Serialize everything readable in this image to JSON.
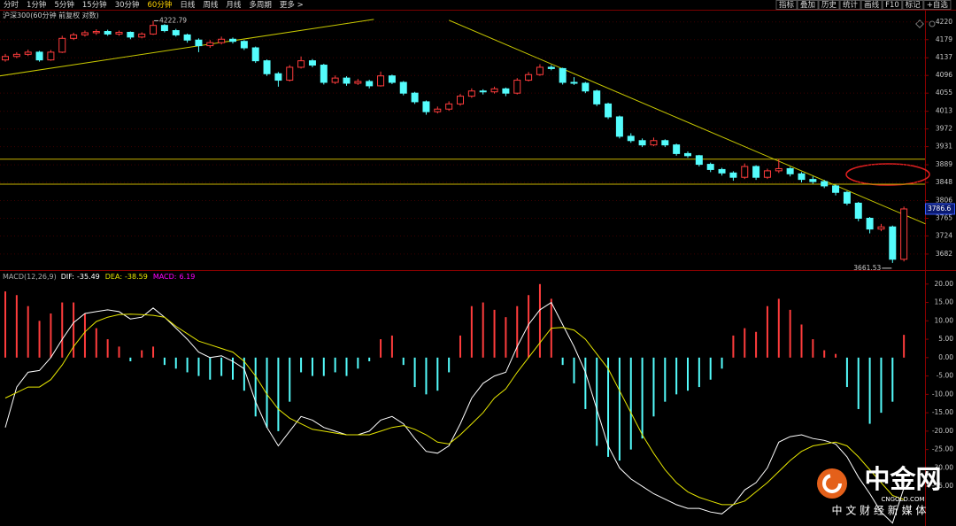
{
  "toolbar": {
    "periods": [
      "分时",
      "1分钟",
      "5分钟",
      "15分钟",
      "30分钟",
      "60分钟",
      "日线",
      "周线",
      "月线",
      "多周期",
      "更多 >"
    ],
    "active_period": 5,
    "tools": [
      "指标",
      "叠加",
      "历史",
      "统计",
      "画线",
      "F10",
      "标记",
      "+自选"
    ]
  },
  "chart_data": [
    {
      "type": "candlestick",
      "title": "沪深300(60分钟 前复权 对数)",
      "candles": [
        [
          4132,
          4146,
          4128,
          4140
        ],
        [
          4140,
          4150,
          4136,
          4145
        ],
        [
          4145,
          4156,
          4141,
          4150
        ],
        [
          4150,
          4153,
          4128,
          4132
        ],
        [
          4132,
          4155,
          4130,
          4150
        ],
        [
          4150,
          4188,
          4148,
          4182
        ],
        [
          4182,
          4195,
          4178,
          4190
        ],
        [
          4190,
          4200,
          4186,
          4195
        ],
        [
          4195,
          4203,
          4190,
          4198
        ],
        [
          4198,
          4202,
          4188,
          4192
        ],
        [
          4192,
          4200,
          4188,
          4196
        ],
        [
          4196,
          4198,
          4180,
          4185
        ],
        [
          4185,
          4196,
          4182,
          4192
        ],
        [
          4192,
          4222.79,
          4190,
          4212
        ],
        [
          4212,
          4215,
          4196,
          4200
        ],
        [
          4200,
          4204,
          4186,
          4190
        ],
        [
          4190,
          4193,
          4172,
          4178
        ],
        [
          4178,
          4182,
          4150,
          4165
        ],
        [
          4165,
          4178,
          4160,
          4172
        ],
        [
          4172,
          4186,
          4168,
          4180
        ],
        [
          4180,
          4184,
          4170,
          4175
        ],
        [
          4175,
          4178,
          4155,
          4160
        ],
        [
          4160,
          4163,
          4125,
          4130
        ],
        [
          4130,
          4133,
          4095,
          4100
        ],
        [
          4100,
          4104,
          4070,
          4085
        ],
        [
          4085,
          4120,
          4082,
          4115
        ],
        [
          4115,
          4140,
          4112,
          4130
        ],
        [
          4130,
          4134,
          4115,
          4120
        ],
        [
          4120,
          4123,
          4075,
          4080
        ],
        [
          4080,
          4096,
          4076,
          4090
        ],
        [
          4090,
          4094,
          4072,
          4078
        ],
        [
          4078,
          4088,
          4074,
          4082
        ],
        [
          4082,
          4086,
          4066,
          4072
        ],
        [
          4072,
          4105,
          4070,
          4095
        ],
        [
          4095,
          4098,
          4076,
          4080
        ],
        [
          4080,
          4083,
          4050,
          4055
        ],
        [
          4055,
          4058,
          4030,
          4035
        ],
        [
          4035,
          4038,
          4005,
          4012
        ],
        [
          4012,
          4024,
          4008,
          4018
        ],
        [
          4018,
          4036,
          4014,
          4030
        ],
        [
          4030,
          4053,
          4026,
          4048
        ],
        [
          4048,
          4066,
          4044,
          4060
        ],
        [
          4060,
          4064,
          4052,
          4058
        ],
        [
          4058,
          4070,
          4054,
          4065
        ],
        [
          4065,
          4068,
          4048,
          4055
        ],
        [
          4055,
          4090,
          4052,
          4085
        ],
        [
          4085,
          4104,
          4082,
          4098
        ],
        [
          4098,
          4122,
          4095,
          4115
        ],
        [
          4115,
          4120,
          4108,
          4112
        ],
        [
          4112,
          4114,
          4075,
          4080
        ],
        [
          4080,
          4092,
          4074,
          4078
        ],
        [
          4078,
          4081,
          4055,
          4060
        ],
        [
          4060,
          4063,
          4025,
          4030
        ],
        [
          4030,
          4033,
          3995,
          4000
        ],
        [
          4000,
          4003,
          3950,
          3955
        ],
        [
          3955,
          3962,
          3940,
          3945
        ],
        [
          3945,
          3950,
          3930,
          3935
        ],
        [
          3935,
          3952,
          3932,
          3945
        ],
        [
          3945,
          3948,
          3930,
          3935
        ],
        [
          3935,
          3938,
          3910,
          3915
        ],
        [
          3915,
          3920,
          3905,
          3910
        ],
        [
          3910,
          3912,
          3885,
          3890
        ],
        [
          3890,
          3894,
          3872,
          3878
        ],
        [
          3878,
          3882,
          3864,
          3870
        ],
        [
          3870,
          3874,
          3852,
          3860
        ],
        [
          3860,
          3892,
          3856,
          3885
        ],
        [
          3885,
          3888,
          3854,
          3860
        ],
        [
          3860,
          3880,
          3856,
          3875
        ],
        [
          3875,
          3902,
          3870,
          3880
        ],
        [
          3880,
          3884,
          3862,
          3868
        ],
        [
          3868,
          3872,
          3848,
          3855
        ],
        [
          3855,
          3862,
          3845,
          3850
        ],
        [
          3850,
          3854,
          3835,
          3840
        ],
        [
          3840,
          3843,
          3818,
          3825
        ],
        [
          3825,
          3828,
          3795,
          3800
        ],
        [
          3800,
          3803,
          3758,
          3765
        ],
        [
          3765,
          3768,
          3730,
          3740
        ],
        [
          3740,
          3752,
          3735,
          3745
        ],
        [
          3745,
          3748,
          3661.53,
          3670
        ],
        [
          3670,
          3792,
          3665,
          3786.6
        ]
      ],
      "up_color": "#ff3c3c",
      "down_color": "#54fcfc",
      "high_label_index": 13,
      "low_label_index": 78,
      "hlines": [
        3902,
        3844
      ],
      "hline_color": "#c8b400",
      "trendlines": [
        [
          [
            -0.47,
            4095
          ],
          [
            32.4,
            4226
          ]
        ],
        [
          [
            39.0,
            4224
          ],
          [
            80.9,
            3752
          ]
        ]
      ],
      "trendline_color": "#c8c800",
      "ylim": [
        3649,
        4236
      ],
      "yticks": [
        4220,
        4179,
        4137,
        4096,
        4055,
        4013,
        3972,
        3931,
        3889,
        3848,
        3806,
        3765,
        3724,
        3682
      ],
      "grid": true
    },
    {
      "type": "macd",
      "title": "MACD(12,26,9)",
      "series": [
        {
          "name": "DIF:",
          "color": "#ffffff",
          "values": [
            -19,
            -8,
            -4,
            -3.5,
            0,
            5,
            9.5,
            12,
            12.5,
            13,
            12.5,
            10.5,
            11,
            13.5,
            11,
            8,
            5,
            1.5,
            0,
            0.5,
            -1,
            -3,
            -12,
            -19,
            -24,
            -20,
            -16,
            -17,
            -19,
            -20,
            -21,
            -21,
            -20,
            -17,
            -16,
            -18,
            -22,
            -25.5,
            -26,
            -24,
            -18,
            -11,
            -7,
            -5,
            -4,
            3,
            9,
            13,
            15,
            9,
            3,
            -4,
            -14,
            -24,
            -30,
            -33,
            -35,
            -37,
            -38.5,
            -40,
            -41,
            -41,
            -42,
            -42.5,
            -40,
            -36,
            -34,
            -30,
            -23,
            -21.5,
            -21,
            -22,
            -22.5,
            -23.5,
            -27,
            -32.5,
            -37,
            -42,
            -45,
            -35.49
          ]
        },
        {
          "name": "DEA:",
          "color": "#e6e600",
          "values": [
            -11,
            -9.5,
            -8,
            -8,
            -6,
            -2,
            3,
            7,
            9.8,
            11,
            11.7,
            11.8,
            11.7,
            11.5,
            11,
            8.5,
            6.5,
            4.5,
            3.5,
            2.5,
            1.5,
            -1,
            -5,
            -10,
            -14,
            -16.5,
            -18,
            -19.5,
            -20,
            -20.5,
            -21,
            -21,
            -21,
            -20,
            -19,
            -18.5,
            -19.5,
            -21,
            -23,
            -23.5,
            -21,
            -18,
            -15,
            -11,
            -8.5,
            -4,
            0,
            4,
            8,
            8.2,
            7.5,
            5,
            1,
            -3,
            -9,
            -15,
            -21,
            -26,
            -30.5,
            -34,
            -36.5,
            -38,
            -39,
            -40,
            -40,
            -39,
            -36.5,
            -34,
            -31,
            -28,
            -25.5,
            -24,
            -23.5,
            -23,
            -24,
            -27,
            -30.5,
            -34,
            -37.5,
            -38.59
          ]
        },
        {
          "name": "MACD:",
          "color": "#ff00ff",
          "style": "bar",
          "up_color": "#ff3c3c",
          "down_color": "#54fcfc",
          "values": [
            18,
            17,
            14,
            10,
            12,
            15,
            15,
            12,
            8,
            5,
            3,
            -1,
            2,
            3,
            -2,
            -3,
            -4,
            -5,
            -6,
            -5,
            -6,
            -9,
            -16,
            -19,
            -20,
            -12,
            -4,
            -5,
            -5,
            -4,
            -5,
            -3,
            -1,
            5,
            6,
            -2,
            -8,
            -10,
            -9,
            -4,
            6,
            14,
            15,
            13,
            11,
            14,
            17,
            20,
            16,
            -2,
            -7,
            -14,
            -24,
            -27,
            -28,
            -25,
            -22,
            -16,
            -12,
            -10,
            -9,
            -8,
            -6,
            -3,
            6,
            8,
            7,
            14,
            16,
            13,
            9,
            5,
            2,
            1,
            -8,
            -14,
            -18,
            -15,
            -12,
            6.19
          ]
        }
      ],
      "ylim": [
        -45.8,
        22.6
      ],
      "yticks": [
        {
          "value": 20,
          "label": "20.00"
        },
        {
          "value": 15,
          "label": "15.00"
        },
        {
          "value": 10,
          "label": "10.00"
        },
        {
          "value": 5,
          "label": "5.00"
        },
        {
          "value": 0,
          "label": "0.00"
        },
        {
          "value": -5,
          "label": "-5.00"
        },
        {
          "value": -10,
          "label": "-10.00"
        },
        {
          "value": -15,
          "label": "-15.00"
        },
        {
          "value": -20,
          "label": "-20.00"
        },
        {
          "value": -25,
          "label": "-25.00"
        },
        {
          "value": -30,
          "label": "-30.00"
        },
        {
          "value": -35,
          "label": "-35.00"
        }
      ]
    }
  ],
  "watermark": {
    "name": "中金网",
    "site": "CNGOLD.COM",
    "slogan": "中 文 财 经 新 媒 体"
  }
}
